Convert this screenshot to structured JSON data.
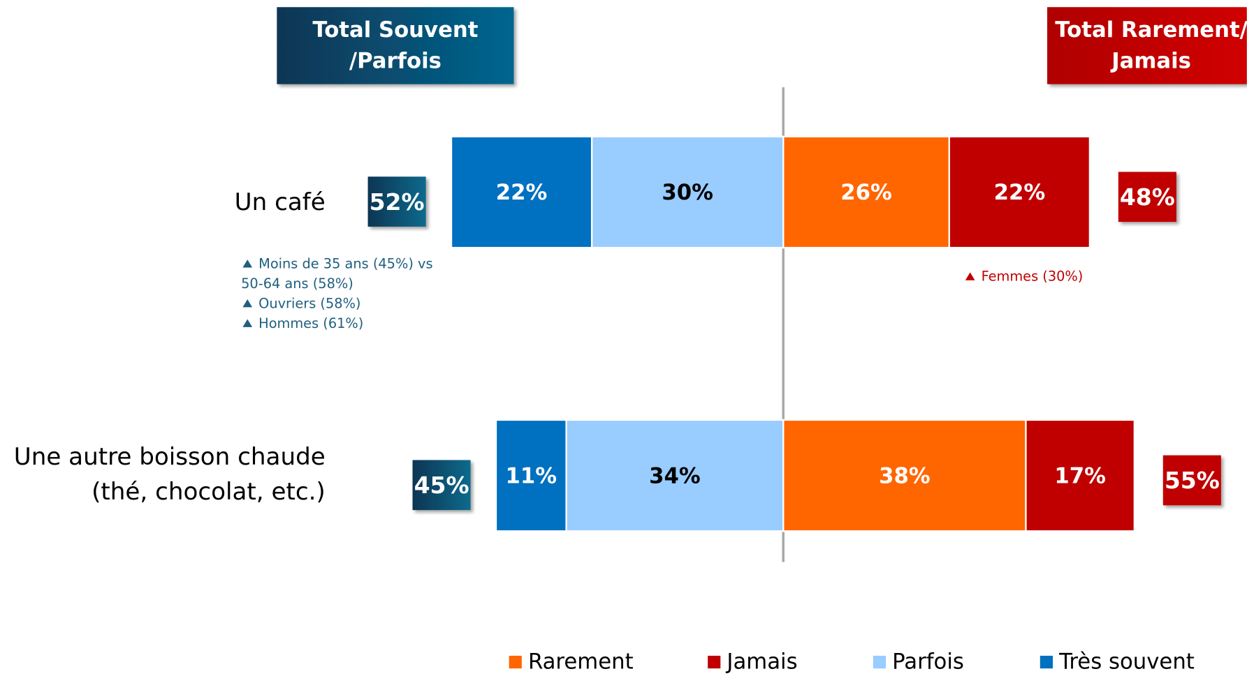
{
  "chart_data": {
    "type": "diverging_bar",
    "headers": {
      "left": [
        "Total Souvent",
        "/Parfois"
      ],
      "right": [
        "Total Rarement/",
        "Jamais"
      ]
    },
    "categories": [
      [
        "Un café"
      ],
      [
        "Une autre boisson chaude",
        "(thé, chocolat, etc.)"
      ]
    ],
    "series": [
      {
        "name": "Rarement",
        "color": "#ff6600",
        "label_color": "#ffffff",
        "side": "right",
        "values": [
          26,
          38
        ],
        "value_labels": [
          "26%",
          "38%"
        ]
      },
      {
        "name": "Jamais",
        "color": "#c00000",
        "label_color": "#ffffff",
        "side": "right",
        "values": [
          22,
          17
        ],
        "value_labels": [
          "22%",
          "17%"
        ]
      },
      {
        "name": "Parfois",
        "color": "#99ccff",
        "label_color": "#000000",
        "side": "left",
        "values": [
          30,
          34
        ],
        "value_labels": [
          "30%",
          "34%"
        ]
      },
      {
        "name": "Très souvent",
        "color": "#0070c0",
        "label_color": "#ffffff",
        "side": "left",
        "values": [
          22,
          11
        ],
        "value_labels": [
          "22%",
          "11%"
        ]
      }
    ],
    "totals": {
      "left": {
        "color": "#0e4d6e",
        "values": [
          52,
          45
        ],
        "value_labels": [
          "52%",
          "45%"
        ]
      },
      "right": {
        "color": "#c00000",
        "values": [
          48,
          55
        ],
        "value_labels": [
          "48%",
          "55%"
        ]
      }
    },
    "notes": {
      "left": {
        "color": "#1f5f7f",
        "items": [
          [
            "Moins de 35 ans (45%) vs",
            "50-64 ans (58%)"
          ],
          [
            "Ouvriers (58%)"
          ],
          [
            "Hommes (61%)"
          ]
        ]
      },
      "right": {
        "color": "#c00000",
        "items": [
          [
            "Femmes (30%)"
          ]
        ]
      }
    }
  }
}
